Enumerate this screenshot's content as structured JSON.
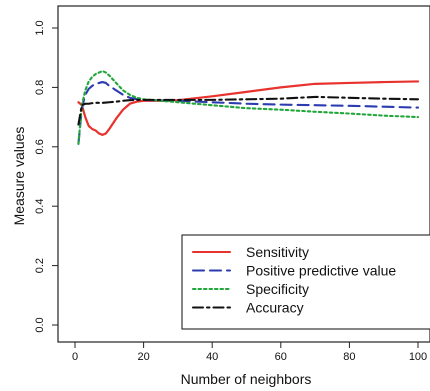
{
  "chart_data": {
    "type": "line",
    "title": "",
    "xlabel": "Number of neighbors",
    "ylabel": "Measure values",
    "xlim": [
      0,
      100
    ],
    "ylim": [
      0,
      1
    ],
    "xticks": [
      0,
      20,
      40,
      60,
      80,
      100
    ],
    "yticks": [
      0.0,
      0.2,
      0.4,
      0.6,
      0.8,
      1.0
    ],
    "ytick_labels": [
      "0.0",
      "0.2",
      "0.4",
      "0.6",
      "0.8",
      "1.0"
    ],
    "xtick_labels": [
      "0",
      "20",
      "40",
      "60",
      "80",
      "100"
    ],
    "legend_position": "bottom-right",
    "grid": false,
    "series": [
      {
        "name": "Sensitivity",
        "color": "#e8322e",
        "dash": "solid",
        "x": [
          1,
          2,
          3,
          4,
          5,
          6,
          7,
          8,
          9,
          10,
          12,
          14,
          16,
          18,
          20,
          25,
          30,
          40,
          50,
          60,
          70,
          80,
          90,
          100
        ],
        "y": [
          0.75,
          0.74,
          0.7,
          0.67,
          0.66,
          0.655,
          0.645,
          0.64,
          0.645,
          0.66,
          0.695,
          0.725,
          0.745,
          0.752,
          0.755,
          0.755,
          0.757,
          0.77,
          0.785,
          0.8,
          0.812,
          0.815,
          0.818,
          0.82
        ]
      },
      {
        "name": "Positive predictive value",
        "color": "#2b3bb0",
        "dash": "long",
        "x": [
          1,
          2,
          3,
          4,
          5,
          6,
          7,
          8,
          9,
          10,
          12,
          14,
          16,
          18,
          20,
          25,
          30,
          40,
          50,
          60,
          70,
          80,
          90,
          100
        ],
        "y": [
          0.61,
          0.73,
          0.775,
          0.795,
          0.805,
          0.812,
          0.815,
          0.818,
          0.815,
          0.805,
          0.79,
          0.775,
          0.765,
          0.76,
          0.758,
          0.756,
          0.755,
          0.75,
          0.745,
          0.742,
          0.74,
          0.738,
          0.735,
          0.732
        ]
      },
      {
        "name": "Specificity",
        "color": "#22a63a",
        "dash": "dot",
        "x": [
          1,
          2,
          3,
          4,
          5,
          6,
          7,
          8,
          9,
          10,
          12,
          14,
          16,
          18,
          20,
          25,
          30,
          40,
          50,
          60,
          70,
          80,
          90,
          100
        ],
        "y": [
          0.61,
          0.74,
          0.79,
          0.82,
          0.835,
          0.845,
          0.85,
          0.855,
          0.85,
          0.84,
          0.815,
          0.79,
          0.775,
          0.765,
          0.76,
          0.755,
          0.75,
          0.74,
          0.73,
          0.725,
          0.718,
          0.712,
          0.705,
          0.7
        ]
      },
      {
        "name": "Accuracy",
        "color": "#111111",
        "dash": "dashdot",
        "x": [
          1,
          2,
          3,
          4,
          5,
          6,
          7,
          8,
          9,
          10,
          12,
          14,
          16,
          18,
          20,
          25,
          30,
          40,
          50,
          60,
          70,
          80,
          90,
          100
        ],
        "y": [
          0.675,
          0.74,
          0.745,
          0.745,
          0.747,
          0.748,
          0.748,
          0.748,
          0.749,
          0.75,
          0.752,
          0.755,
          0.757,
          0.758,
          0.758,
          0.758,
          0.758,
          0.758,
          0.76,
          0.762,
          0.768,
          0.765,
          0.762,
          0.76
        ]
      }
    ]
  }
}
